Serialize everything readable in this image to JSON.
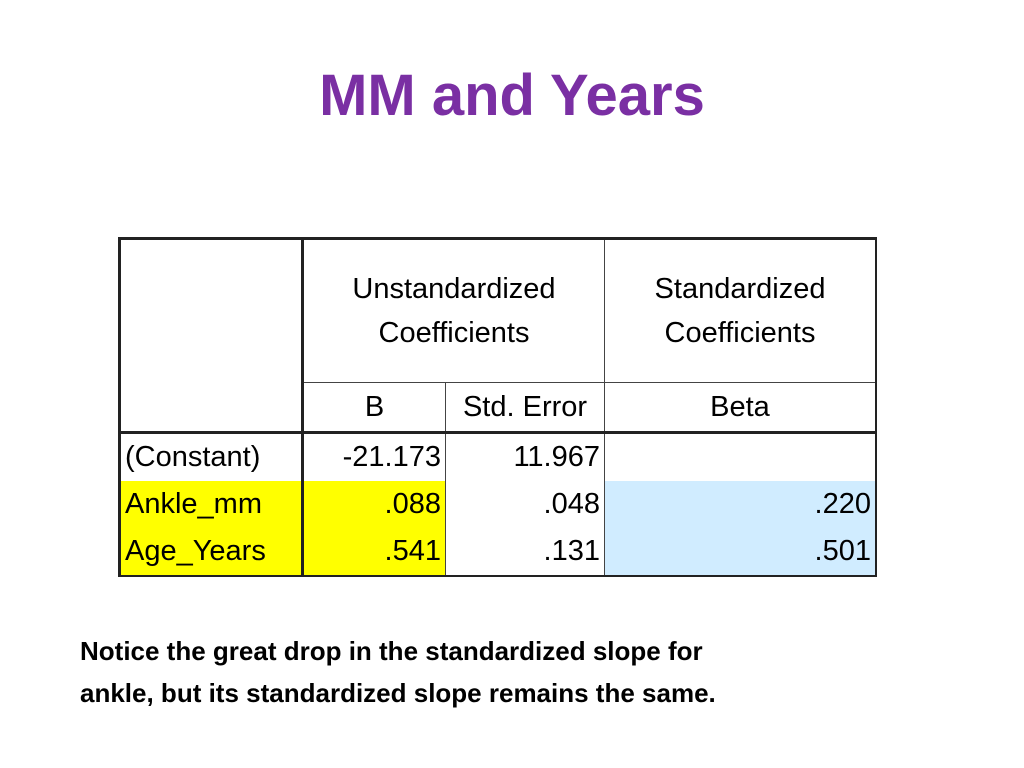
{
  "title": "MM and Years",
  "table": {
    "header": {
      "unstandardized": [
        "Unstandardized",
        "Coefficients"
      ],
      "standardized": [
        "Standardized",
        "Coefficients"
      ],
      "b": "B",
      "std_error": "Std. Error",
      "beta": "Beta"
    },
    "rows": [
      {
        "label": "(Constant)",
        "b": "-21.173",
        "se": "11.967",
        "beta": ""
      },
      {
        "label": "Ankle_mm",
        "b": ".088",
        "se": ".048",
        "beta": ".220"
      },
      {
        "label": "Age_Years",
        "b": ".541",
        "se": ".131",
        "beta": ".501"
      }
    ]
  },
  "highlight_colors": {
    "yellow": "#ffff00",
    "blue": "#d0ecff"
  },
  "title_color": "#7a2fa3",
  "note": {
    "line1": "Notice the great drop in the standardized slope for",
    "line2": "ankle, but its standardized slope remains the same."
  }
}
